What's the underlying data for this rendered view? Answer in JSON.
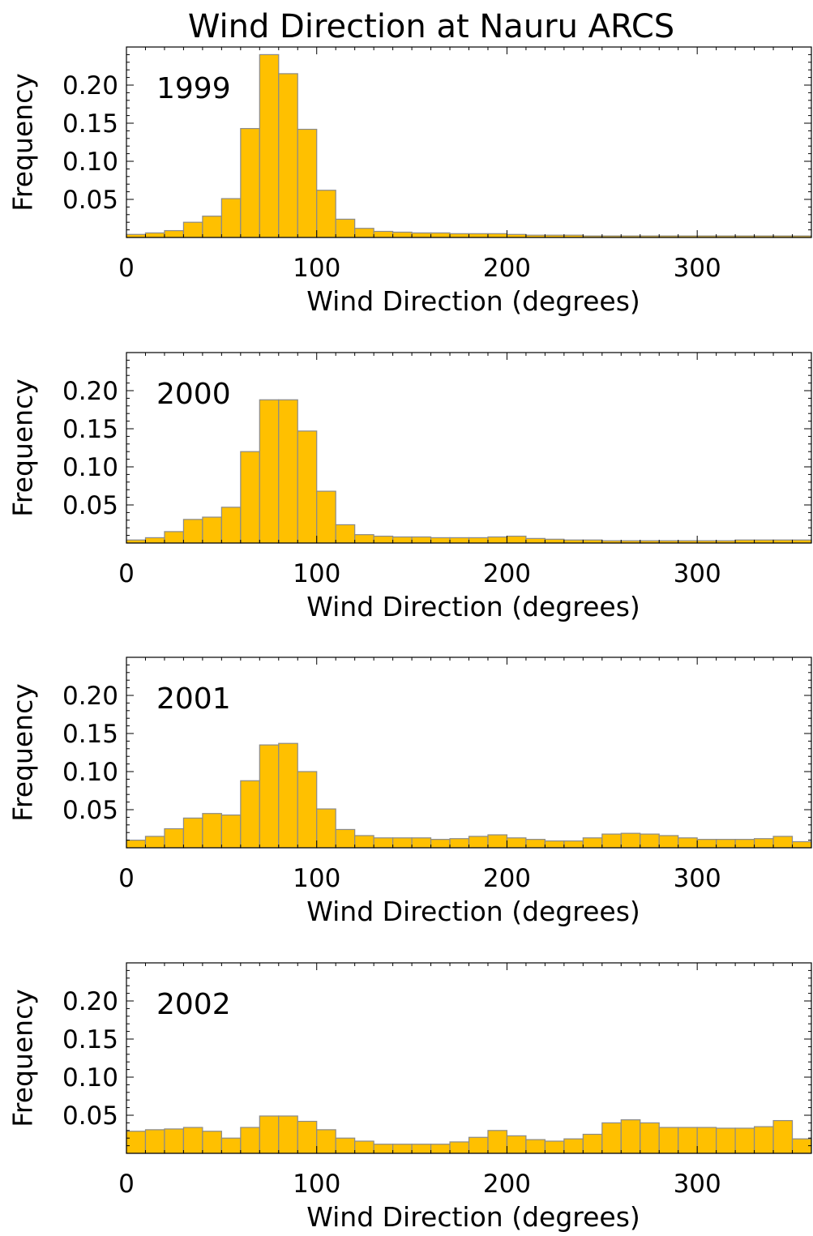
{
  "title": "Wind Direction at Nauru ARCS",
  "chart_data": [
    {
      "type": "bar",
      "year_label": "1999",
      "xlabel": "Wind Direction (degrees)",
      "ylabel": "Frequency",
      "xlim": [
        0,
        360
      ],
      "ylim": [
        0,
        0.25
      ],
      "xticks": [
        0,
        100,
        200,
        300
      ],
      "yticks": [
        0.05,
        0.1,
        0.15,
        0.2
      ],
      "ytick_labels": [
        "0.05",
        "0.10",
        "0.15",
        "0.20"
      ],
      "bin_width": 10,
      "values": [
        0.004,
        0.006,
        0.009,
        0.02,
        0.028,
        0.051,
        0.143,
        0.24,
        0.215,
        0.142,
        0.062,
        0.024,
        0.012,
        0.008,
        0.007,
        0.006,
        0.006,
        0.005,
        0.005,
        0.005,
        0.004,
        0.003,
        0.003,
        0.003,
        0.002,
        0.002,
        0.002,
        0.002,
        0.002,
        0.002,
        0.002,
        0.002,
        0.002,
        0.002,
        0.002,
        0.002
      ]
    },
    {
      "type": "bar",
      "year_label": "2000",
      "xlabel": "Wind Direction (degrees)",
      "ylabel": "Frequency",
      "xlim": [
        0,
        360
      ],
      "ylim": [
        0,
        0.25
      ],
      "xticks": [
        0,
        100,
        200,
        300
      ],
      "yticks": [
        0.05,
        0.1,
        0.15,
        0.2
      ],
      "ytick_labels": [
        "0.05",
        "0.10",
        "0.15",
        "0.20"
      ],
      "bin_width": 10,
      "values": [
        0.004,
        0.007,
        0.015,
        0.031,
        0.034,
        0.047,
        0.12,
        0.188,
        0.188,
        0.147,
        0.068,
        0.024,
        0.011,
        0.009,
        0.008,
        0.008,
        0.007,
        0.007,
        0.007,
        0.008,
        0.009,
        0.006,
        0.005,
        0.004,
        0.004,
        0.003,
        0.003,
        0.003,
        0.003,
        0.003,
        0.003,
        0.003,
        0.004,
        0.004,
        0.004,
        0.004
      ]
    },
    {
      "type": "bar",
      "year_label": "2001",
      "xlabel": "Wind Direction (degrees)",
      "ylabel": "Frequency",
      "xlim": [
        0,
        360
      ],
      "ylim": [
        0,
        0.25
      ],
      "xticks": [
        0,
        100,
        200,
        300
      ],
      "yticks": [
        0.05,
        0.1,
        0.15,
        0.2
      ],
      "ytick_labels": [
        "0.05",
        "0.10",
        "0.15",
        "0.20"
      ],
      "bin_width": 10,
      "values": [
        0.01,
        0.015,
        0.025,
        0.039,
        0.045,
        0.043,
        0.088,
        0.135,
        0.137,
        0.1,
        0.051,
        0.024,
        0.016,
        0.013,
        0.013,
        0.013,
        0.011,
        0.012,
        0.015,
        0.017,
        0.013,
        0.011,
        0.009,
        0.009,
        0.013,
        0.018,
        0.019,
        0.018,
        0.016,
        0.013,
        0.011,
        0.011,
        0.011,
        0.012,
        0.015,
        0.008
      ]
    },
    {
      "type": "bar",
      "year_label": "2002",
      "xlabel": "Wind Direction (degrees)",
      "ylabel": "Frequency",
      "xlim": [
        0,
        360
      ],
      "ylim": [
        0,
        0.25
      ],
      "xticks": [
        0,
        100,
        200,
        300
      ],
      "yticks": [
        0.05,
        0.1,
        0.15,
        0.2
      ],
      "ytick_labels": [
        "0.05",
        "0.10",
        "0.15",
        "0.20"
      ],
      "bin_width": 10,
      "values": [
        0.029,
        0.031,
        0.032,
        0.034,
        0.029,
        0.02,
        0.034,
        0.049,
        0.049,
        0.042,
        0.031,
        0.02,
        0.016,
        0.012,
        0.012,
        0.012,
        0.012,
        0.015,
        0.021,
        0.03,
        0.023,
        0.018,
        0.016,
        0.019,
        0.025,
        0.04,
        0.044,
        0.04,
        0.034,
        0.034,
        0.034,
        0.033,
        0.033,
        0.035,
        0.043,
        0.019
      ]
    }
  ],
  "colors": {
    "bar_fill": "#ffc000",
    "bar_stroke": "#8a8a8a",
    "axis": "#000000"
  }
}
